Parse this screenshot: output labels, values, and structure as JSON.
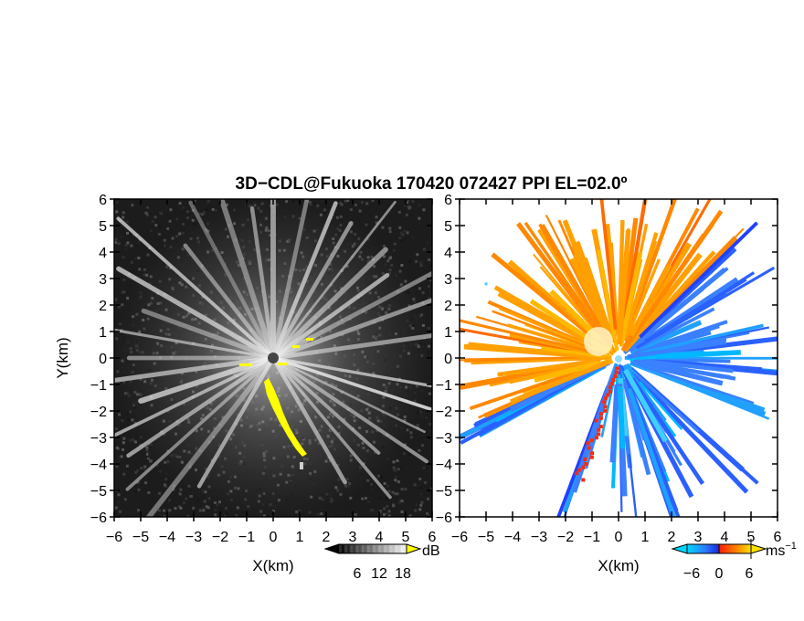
{
  "title": "3D−CDL@Fukuoka 170420 072427 PPI EL=02.0º",
  "chart_data": [
    {
      "type": "heatmap",
      "panel": "left",
      "quantity": "SNR",
      "xlabel": "X(km)",
      "ylabel": "Y(km)",
      "xlim": [
        -6,
        6
      ],
      "ylim": [
        -6,
        6
      ],
      "xticks": [
        "−6",
        "−5",
        "−4",
        "−3",
        "−2",
        "−1",
        "0",
        "1",
        "2",
        "3",
        "4",
        "5",
        "6"
      ],
      "yticks": [
        "6",
        "5",
        "4",
        "3",
        "2",
        "1",
        "0",
        "−1",
        "−2",
        "−3",
        "−4",
        "−5",
        "−6"
      ],
      "colorbar": {
        "unit": "dB",
        "ticks": [
          "6",
          "12",
          "18"
        ],
        "colors": [
          "#000000",
          "#ffffff",
          "#ffff00"
        ]
      },
      "radar_center": [
        0,
        0
      ],
      "rays_deg": [
        8,
        20,
        28,
        36,
        44,
        52,
        60,
        68,
        78,
        90,
        98,
        108,
        118,
        128,
        138,
        150,
        160,
        170,
        180,
        188,
        198,
        206,
        214,
        222,
        232,
        240,
        300,
        310,
        318,
        326,
        334,
        342,
        350
      ]
    },
    {
      "type": "heatmap",
      "panel": "right",
      "quantity": "radial velocity",
      "xlabel": "X(km)",
      "xlim": [
        -6,
        6
      ],
      "ylim": [
        -6,
        6
      ],
      "xticks": [
        "−6",
        "−5",
        "−4",
        "−3",
        "−2",
        "−1",
        "0",
        "1",
        "2",
        "3",
        "4",
        "5",
        "6"
      ],
      "yticks": [
        "6",
        "5",
        "4",
        "3",
        "2",
        "1",
        "0",
        "−1",
        "−2",
        "−3",
        "−4",
        "−5",
        "−6"
      ],
      "colorbar": {
        "unit": "ms",
        "unit_exponent": "−1",
        "ticks": [
          "−6",
          "0",
          "6"
        ],
        "colors": [
          "#00ccff",
          "#1f3fff",
          "#ff2000",
          "#ffee00"
        ]
      },
      "radar_center": [
        0,
        0
      ]
    }
  ]
}
